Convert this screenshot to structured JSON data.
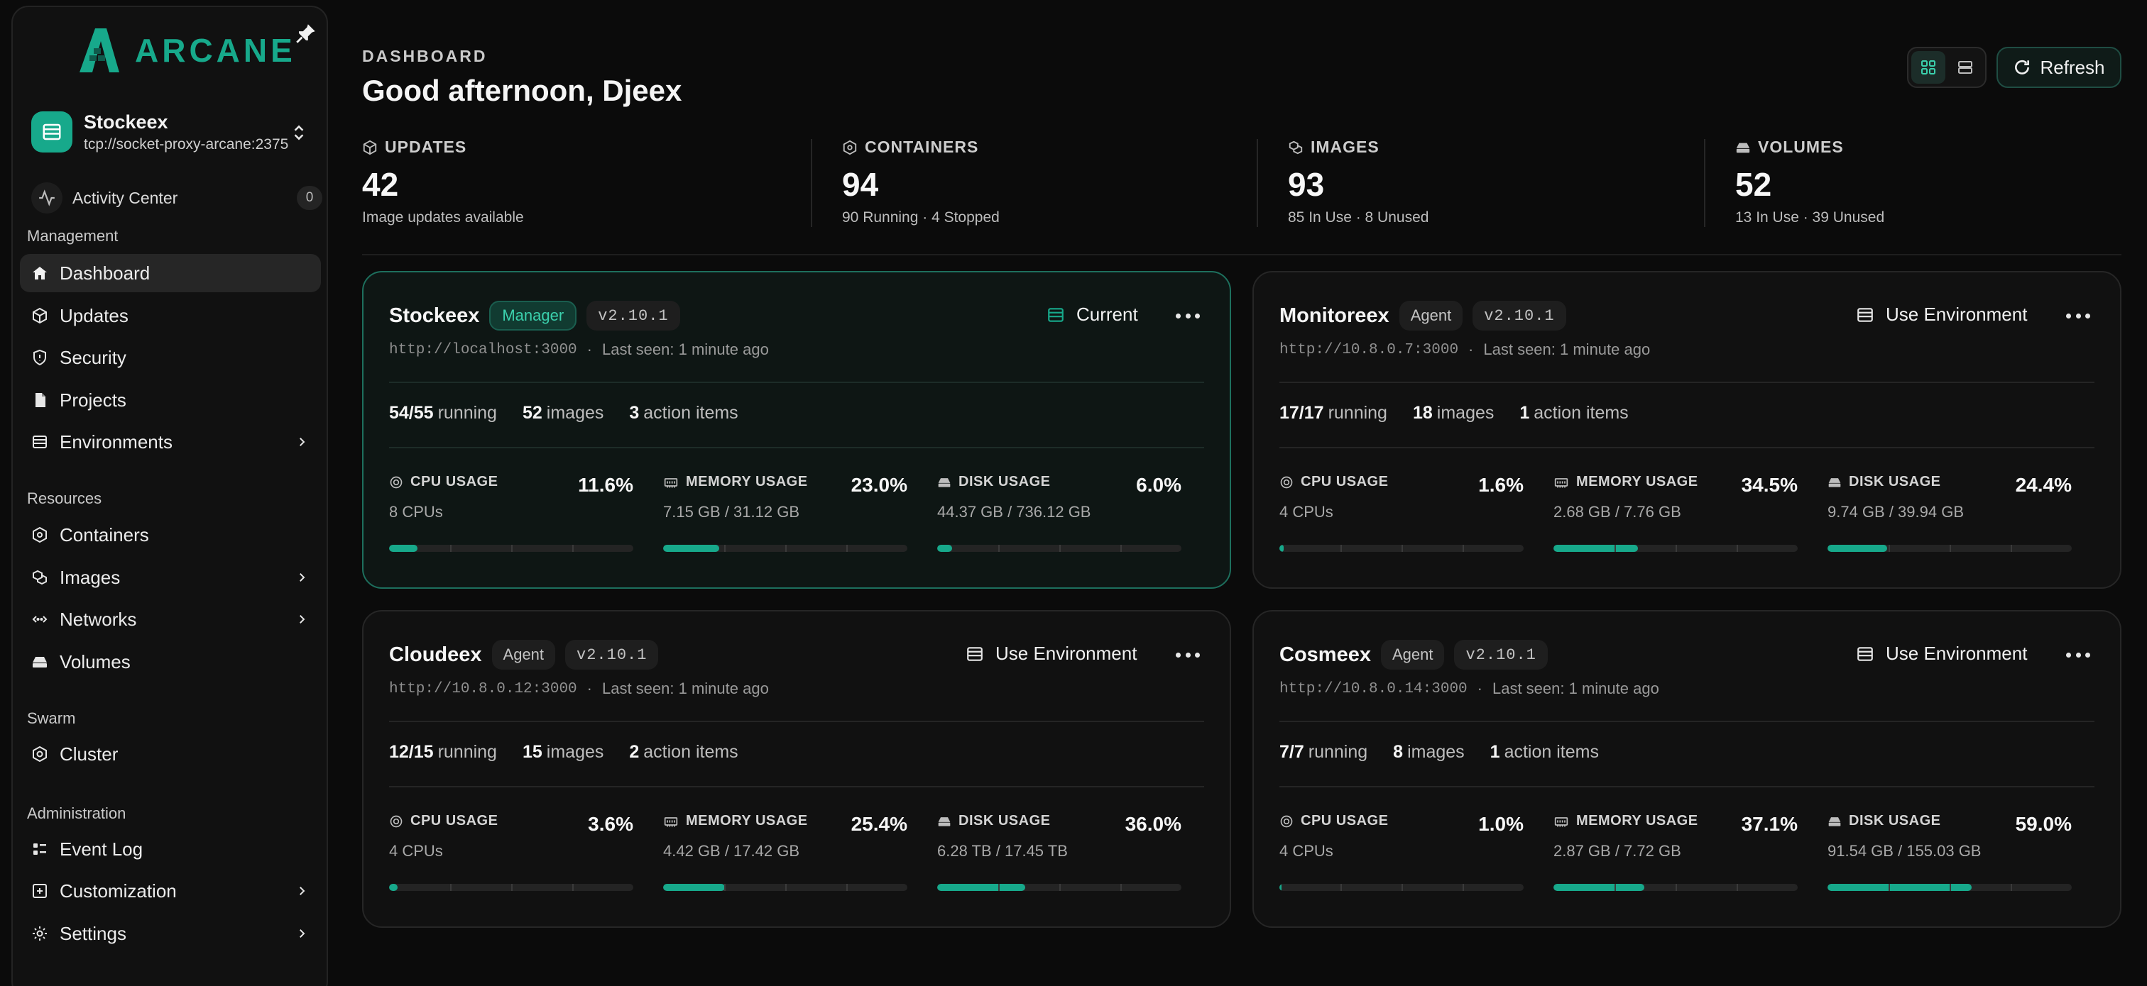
{
  "brand": {
    "name": "ARCANE",
    "accent": "#17a98b"
  },
  "environment_switcher": {
    "name": "Stockeex",
    "url": "tcp://socket-proxy-arcane:2375"
  },
  "activity": {
    "label": "Activity Center",
    "count": "0"
  },
  "sidebar": {
    "sections": {
      "management": "Management",
      "resources": "Resources",
      "swarm": "Swarm",
      "administration": "Administration"
    },
    "items": {
      "dashboard": "Dashboard",
      "updates": "Updates",
      "security": "Security",
      "projects": "Projects",
      "environments": "Environments",
      "containers": "Containers",
      "images": "Images",
      "networks": "Networks",
      "volumes": "Volumes",
      "cluster": "Cluster",
      "event_log": "Event Log",
      "customization": "Customization",
      "settings": "Settings"
    }
  },
  "header": {
    "kicker": "DASHBOARD",
    "greeting": "Good afternoon, Djeex",
    "refresh_label": "Refresh"
  },
  "stats": [
    {
      "label": "UPDATES",
      "value": "42",
      "sub": "Image updates available"
    },
    {
      "label": "CONTAINERS",
      "value": "94",
      "sub": "90 Running · 4 Stopped"
    },
    {
      "label": "IMAGES",
      "value": "93",
      "sub": "85 In Use · 8 Unused"
    },
    {
      "label": "VOLUMES",
      "value": "52",
      "sub": "13 In Use · 39 Unused"
    }
  ],
  "metric_labels": {
    "cpu": "CPU USAGE",
    "memory": "MEMORY USAGE",
    "disk": "DISK USAGE"
  },
  "count_labels": {
    "running": "running",
    "images": "images",
    "actions": "action items"
  },
  "environments": [
    {
      "name": "Stockeex",
      "role": "Manager",
      "version": "v2.10.1",
      "url": "http://localhost:3000",
      "last_seen": "Last seen: 1 minute ago",
      "action": "Current",
      "current": true,
      "running": "54/55",
      "images": "52",
      "actions": "3",
      "cpu": {
        "pct": "11.6%",
        "sub": "8 CPUs",
        "fill": 0.116
      },
      "memory": {
        "pct": "23.0%",
        "sub": "7.15 GB / 31.12 GB",
        "fill": 0.23
      },
      "disk": {
        "pct": "6.0%",
        "sub": "44.37 GB / 736.12 GB",
        "fill": 0.06
      }
    },
    {
      "name": "Monitoreex",
      "role": "Agent",
      "version": "v2.10.1",
      "url": "http://10.8.0.7:3000",
      "last_seen": "Last seen: 1 minute ago",
      "action": "Use Environment",
      "current": false,
      "running": "17/17",
      "images": "18",
      "actions": "1",
      "cpu": {
        "pct": "1.6%",
        "sub": "4 CPUs",
        "fill": 0.016
      },
      "memory": {
        "pct": "34.5%",
        "sub": "2.68 GB / 7.76 GB",
        "fill": 0.345
      },
      "disk": {
        "pct": "24.4%",
        "sub": "9.74 GB / 39.94 GB",
        "fill": 0.244
      }
    },
    {
      "name": "Cloudeex",
      "role": "Agent",
      "version": "v2.10.1",
      "url": "http://10.8.0.12:3000",
      "last_seen": "Last seen: 1 minute ago",
      "action": "Use Environment",
      "current": false,
      "running": "12/15",
      "images": "15",
      "actions": "2",
      "cpu": {
        "pct": "3.6%",
        "sub": "4 CPUs",
        "fill": 0.036
      },
      "memory": {
        "pct": "25.4%",
        "sub": "4.42 GB / 17.42 GB",
        "fill": 0.254
      },
      "disk": {
        "pct": "36.0%",
        "sub": "6.28 TB / 17.45 TB",
        "fill": 0.36
      }
    },
    {
      "name": "Cosmeex",
      "role": "Agent",
      "version": "v2.10.1",
      "url": "http://10.8.0.14:3000",
      "last_seen": "Last seen: 1 minute ago",
      "action": "Use Environment",
      "current": false,
      "running": "7/7",
      "images": "8",
      "actions": "1",
      "cpu": {
        "pct": "1.0%",
        "sub": "4 CPUs",
        "fill": 0.01
      },
      "memory": {
        "pct": "37.1%",
        "sub": "2.87 GB / 7.72 GB",
        "fill": 0.371
      },
      "disk": {
        "pct": "59.0%",
        "sub": "91.54 GB / 155.03 GB",
        "fill": 0.59
      }
    }
  ]
}
